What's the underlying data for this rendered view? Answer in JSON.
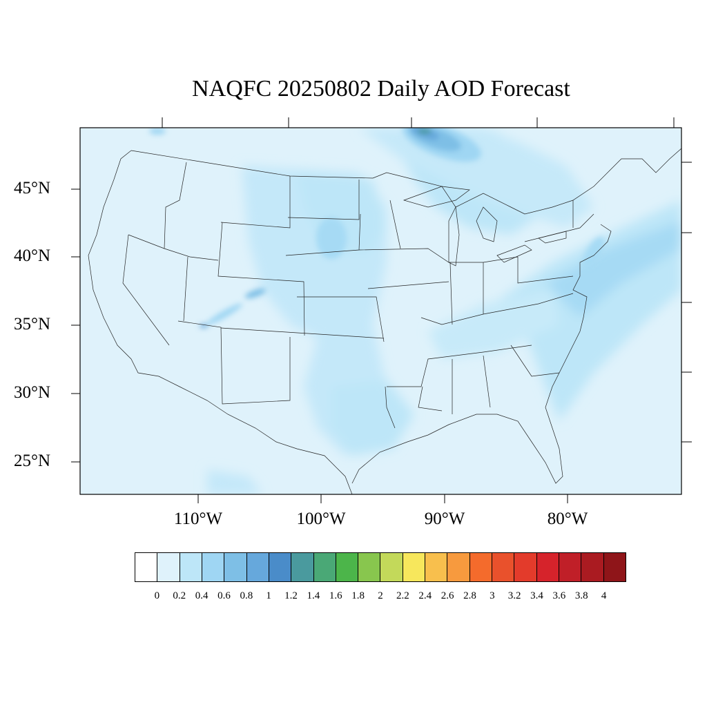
{
  "title": "NAQFC 20250802 Daily AOD Forecast",
  "latitude_labels": [
    "45°N",
    "40°N",
    "35°N",
    "30°N",
    "25°N"
  ],
  "longitude_labels": [
    "110°W",
    "100°W",
    "90°W",
    "80°W"
  ],
  "colorbar": {
    "colors": [
      "#ffffff",
      "#dff2fb",
      "#bde6f8",
      "#9fd6f3",
      "#7ebfe6",
      "#66a8dc",
      "#4a8cc9",
      "#4a9a9e",
      "#4aa876",
      "#4cb54a",
      "#88c64e",
      "#c3d95a",
      "#f7e75c",
      "#f8bf4d",
      "#f79a3e",
      "#f46b2c",
      "#e9512c",
      "#e33b2b",
      "#d6232b",
      "#c01f28",
      "#aa1b21",
      "#8f1519"
    ],
    "labels": [
      "0",
      "0.2",
      "0.4",
      "0.6",
      "0.8",
      "1",
      "1.2",
      "1.4",
      "1.6",
      "1.8",
      "2",
      "2.2",
      "2.4",
      "2.6",
      "2.8",
      "3",
      "3.2",
      "3.4",
      "3.6",
      "3.8",
      "4"
    ]
  }
}
